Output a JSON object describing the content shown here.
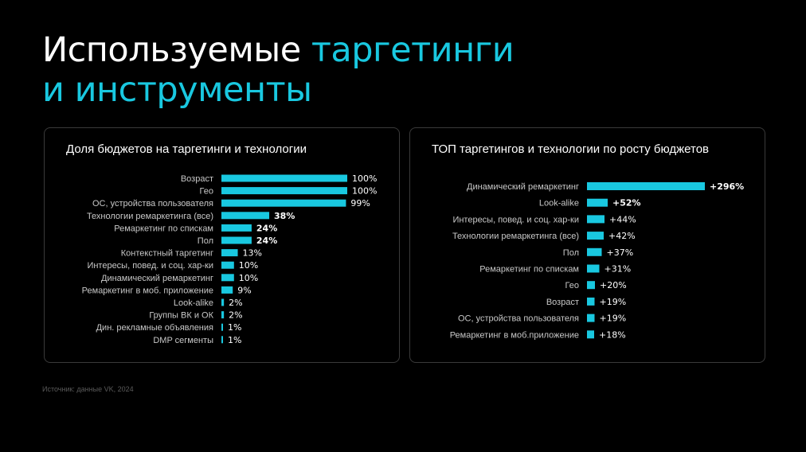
{
  "title": {
    "line1_white": "Используемые ",
    "line1_accent": "таргетинги",
    "line2_accent": "и инструменты"
  },
  "source": "Источник: данные VK, 2024",
  "colors": {
    "accent": "#19c8e0",
    "background": "#000000",
    "panel_border": "#3a3a3a"
  },
  "chart_data": [
    {
      "type": "bar",
      "orientation": "horizontal",
      "title": "Доля бюджетов на таргетинги и технологии",
      "categories": [
        "Возраст",
        "Гео",
        "ОС, устройства пользователя",
        "Технологии ремаркетинга (все)",
        "Ремаркетинг по спискам",
        "Пол",
        "Контекстный таргетинг",
        "Интересы, повед. и соц. хар-ки",
        "Динамический ремаркетинг",
        "Ремаркетинг в моб. приложение",
        "Look-alike",
        "Группы ВК и ОК",
        "Дин. рекламные объявления",
        "DMP сегменты"
      ],
      "values": [
        100,
        100,
        99,
        38,
        24,
        24,
        13,
        10,
        10,
        9,
        2,
        2,
        1,
        1
      ],
      "labels": [
        "100%",
        "100%",
        "99%",
        "38%",
        "24%",
        "24%",
        "13%",
        "10%",
        "10%",
        "9%",
        "2%",
        "2%",
        "1%",
        "1%"
      ],
      "bold_labels": [
        false,
        false,
        false,
        true,
        true,
        true,
        false,
        false,
        false,
        false,
        false,
        false,
        false,
        false
      ],
      "xlim": [
        0,
        100
      ]
    },
    {
      "type": "bar",
      "orientation": "horizontal",
      "title": "ТОП таргетингов и технологии по росту бюджетов",
      "categories": [
        "Динамический ремаркетинг",
        "Look-alike",
        "Интересы, повед. и соц. хар-ки",
        "Технологии ремаркетинга (все)",
        "Пол",
        "Ремаркетинг по спискам",
        "Гео",
        "Возраст",
        "ОС, устройства пользователя",
        "Ремаркетинг в моб.приложение"
      ],
      "values": [
        296,
        52,
        44,
        42,
        37,
        31,
        20,
        19,
        19,
        18
      ],
      "labels": [
        "+296%",
        "+52%",
        "+44%",
        "+42%",
        "+37%",
        "+31%",
        "+20%",
        "+19%",
        "+19%",
        "+18%"
      ],
      "bold_labels": [
        true,
        true,
        false,
        false,
        false,
        false,
        false,
        false,
        false,
        false
      ],
      "xlim": [
        0,
        296
      ]
    }
  ]
}
